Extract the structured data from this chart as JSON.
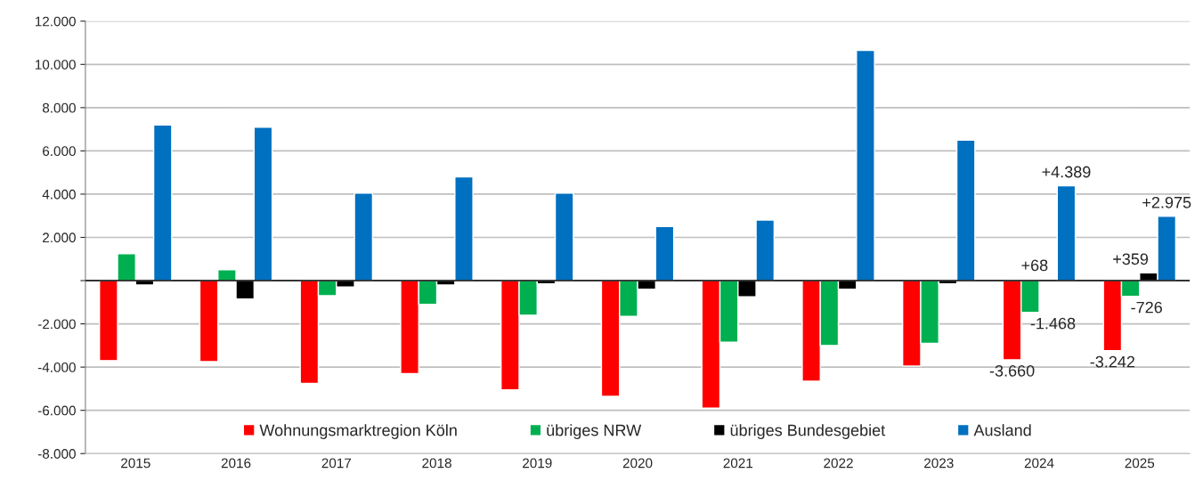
{
  "chart_data": {
    "type": "bar",
    "categories": [
      "2015",
      "2016",
      "2017",
      "2018",
      "2019",
      "2020",
      "2021",
      "2022",
      "2023",
      "2024",
      "2025"
    ],
    "series": [
      {
        "name": "Wohnungsmarktregion Köln",
        "color": "#ff0000",
        "values": [
          -3700,
          -3750,
          -4750,
          -4300,
          -5050,
          -5350,
          -5900,
          -4650,
          -3950,
          -3660,
          -3242
        ],
        "value_labels": [
          null,
          null,
          null,
          null,
          null,
          null,
          null,
          null,
          null,
          "-3.660",
          "-3.242"
        ]
      },
      {
        "name": "übriges NRW",
        "color": "#00b050",
        "values": [
          1250,
          500,
          -700,
          -1100,
          -1600,
          -1650,
          -2850,
          -3000,
          -2900,
          -1468,
          -726
        ],
        "value_labels": [
          null,
          null,
          null,
          null,
          null,
          null,
          null,
          null,
          null,
          "-1.468",
          "-726"
        ]
      },
      {
        "name": "übriges Bundesgebiet",
        "color": "#000000",
        "values": [
          -200,
          -850,
          -300,
          -200,
          -150,
          -400,
          -750,
          -400,
          -150,
          68,
          359
        ],
        "value_labels": [
          null,
          null,
          null,
          null,
          null,
          null,
          null,
          null,
          null,
          "+68",
          "+359"
        ]
      },
      {
        "name": "Ausland",
        "color": "#0070c0",
        "values": [
          7200,
          7100,
          4050,
          4800,
          4050,
          2500,
          2800,
          10650,
          6500,
          4389,
          2975
        ],
        "value_labels": [
          null,
          null,
          null,
          null,
          null,
          null,
          null,
          null,
          null,
          "+4.389",
          "+2.975"
        ]
      }
    ],
    "ylim": [
      -8000,
      12000
    ],
    "yticks": [
      {
        "value": -8000,
        "label": "-8.000"
      },
      {
        "value": -6000,
        "label": "-6.000"
      },
      {
        "value": -4000,
        "label": "-4.000"
      },
      {
        "value": -2000,
        "label": "-2.000"
      },
      {
        "value": 0,
        "label": null
      },
      {
        "value": 2000,
        "label": "2.000"
      },
      {
        "value": 4000,
        "label": "4.000"
      },
      {
        "value": 6000,
        "label": "6.000"
      },
      {
        "value": 8000,
        "label": "8.000"
      },
      {
        "value": 10000,
        "label": "10.000"
      },
      {
        "value": 12000,
        "label": "12.000"
      }
    ],
    "grid": "y",
    "legend": "bottom"
  }
}
